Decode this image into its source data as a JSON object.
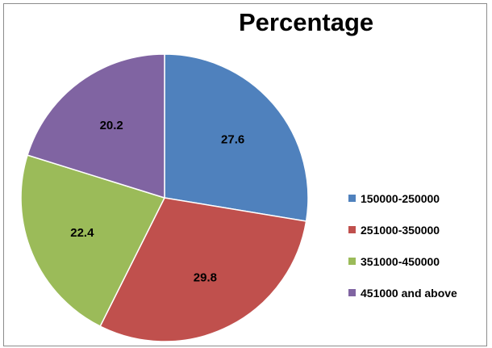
{
  "chart_data": {
    "type": "pie",
    "title": "Percentage",
    "categories": [
      "150000-250000",
      "251000-350000",
      "351000-450000",
      "451000 and above"
    ],
    "values": [
      27.6,
      29.8,
      22.4,
      20.2
    ],
    "data_labels": [
      "27.6",
      "29.8",
      "22.4",
      "20.2"
    ],
    "colors": [
      "#4f81bd",
      "#c0504d",
      "#9bbb59",
      "#8064a2"
    ],
    "start_angle": "12 o'clock",
    "direction": "clockwise",
    "legend_position": "right"
  }
}
